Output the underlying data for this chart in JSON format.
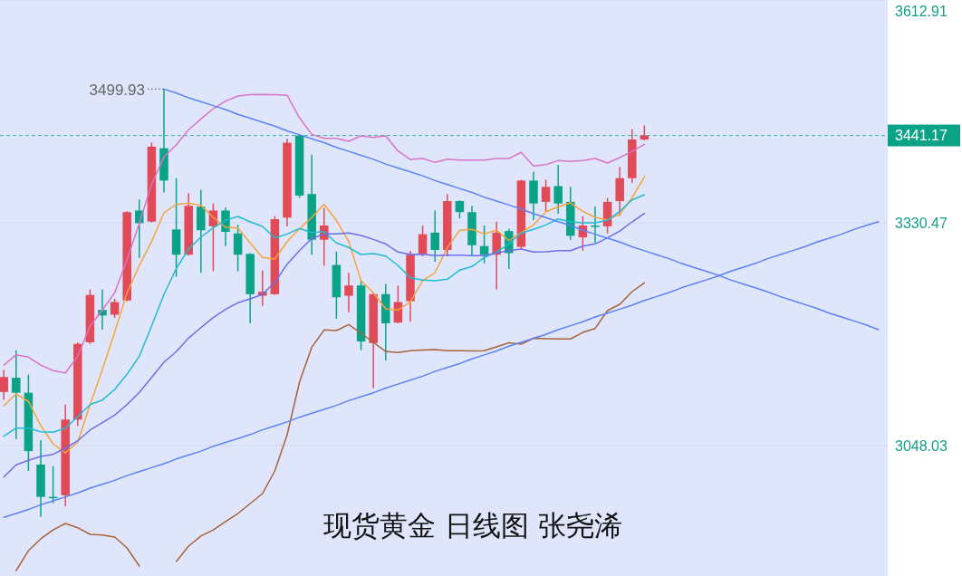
{
  "chart_data": {
    "type": "candlestick",
    "title": "现货黄金 日线图 张尧浠",
    "categories": [
      null,
      null,
      null,
      null,
      null,
      null,
      null,
      null,
      null,
      null,
      null,
      null,
      null,
      null,
      null,
      null,
      null,
      null,
      null,
      null,
      null,
      null,
      null,
      null,
      null,
      null,
      null,
      null,
      null,
      null,
      null,
      null,
      null,
      null,
      null,
      null,
      null,
      null,
      null,
      null,
      null,
      null,
      null,
      null,
      null,
      null,
      null,
      null,
      null,
      null,
      null,
      null,
      null,
      null,
      null,
      null,
      null,
      null,
      null,
      null,
      null,
      null,
      null,
      null,
      null,
      null,
      null,
      null,
      null,
      null,
      null,
      null
    ],
    "ohlc": [
      [
        3116,
        3144,
        3106,
        3135
      ],
      [
        3134,
        3169,
        3056,
        3115
      ],
      [
        3115,
        3138,
        3016,
        3041
      ],
      [
        3024,
        3055,
        2958,
        2983
      ],
      [
        2983,
        3022,
        2975,
        2982
      ],
      [
        2985,
        3100,
        2971,
        3081
      ],
      [
        3081,
        3179,
        3073,
        3177
      ],
      [
        3179,
        3246,
        3177,
        3239
      ],
      [
        3220,
        3246,
        3195,
        3213
      ],
      [
        3214,
        3234,
        3210,
        3230
      ],
      [
        3232,
        3345,
        3231,
        3344
      ],
      [
        3346,
        3360,
        3286,
        3330
      ],
      [
        3332,
        3432,
        3331,
        3427
      ],
      [
        3425,
        3499.93,
        3369,
        3384
      ],
      [
        3322,
        3387,
        3262,
        3290
      ],
      [
        3290,
        3368,
        3289,
        3352
      ],
      [
        3351,
        3372,
        3267,
        3321
      ],
      [
        3326,
        3355,
        3269,
        3346
      ],
      [
        3346,
        3350,
        3301,
        3319
      ],
      [
        3317,
        3328,
        3269,
        3290
      ],
      [
        3291,
        3292,
        3203,
        3240
      ],
      [
        3238,
        3270,
        3225,
        3243
      ],
      [
        3240,
        3339,
        3239,
        3335
      ],
      [
        3337,
        3437,
        3326,
        3432
      ],
      [
        3441,
        3442,
        3362,
        3365
      ],
      [
        3367,
        3417,
        3290,
        3309
      ],
      [
        3309,
        3349,
        3276,
        3327
      ],
      [
        3277,
        3294,
        3209,
        3236
      ],
      [
        3238,
        3267,
        3217,
        3251
      ],
      [
        3251,
        3257,
        3169,
        3180
      ],
      [
        3178,
        3241,
        3121,
        3240
      ],
      [
        3240,
        3253,
        3156,
        3203
      ],
      [
        3204,
        3251,
        3203,
        3230
      ],
      [
        3231,
        3295,
        3205,
        3290
      ],
      [
        3291,
        3327,
        3288,
        3316
      ],
      [
        3318,
        3346,
        3281,
        3296
      ],
      [
        3296,
        3367,
        3288,
        3358
      ],
      [
        3358,
        3359,
        3336,
        3344
      ],
      [
        3344,
        3352,
        3289,
        3302
      ],
      [
        3301,
        3327,
        3279,
        3290
      ],
      [
        3290,
        3332,
        3246,
        3318
      ],
      [
        3320,
        3323,
        3272,
        3292
      ],
      [
        3300,
        3385,
        3297,
        3384
      ],
      [
        3384,
        3395,
        3334,
        3355
      ],
      [
        3357,
        3385,
        3345,
        3376
      ],
      [
        3377,
        3404,
        3342,
        3355
      ],
      [
        3357,
        3376,
        3309,
        3314
      ],
      [
        3312,
        3339,
        3295,
        3327
      ],
      [
        3327,
        3351,
        3305,
        3326
      ],
      [
        3326,
        3362,
        3317,
        3357
      ],
      [
        3358,
        3401,
        3339,
        3387
      ],
      [
        3387,
        3449,
        3381,
        3436
      ],
      [
        3436,
        3454,
        3435,
        3441.17
      ],
      null,
      null,
      null,
      null,
      null,
      null,
      null,
      null,
      null,
      null,
      null,
      null,
      null,
      null,
      null,
      null,
      null,
      null,
      null
    ],
    "colors": [
      "#e04b57",
      "#0ba387",
      "#0ba387",
      "#0ba387",
      "#0ba387",
      "#e04b57",
      "#e04b57",
      "#e04b57",
      "#0ba387",
      "#e04b57",
      "#e04b57",
      "#0ba387",
      "#e04b57",
      "#0ba387",
      "#0ba387",
      "#e04b57",
      "#0ba387",
      "#e04b57",
      "#0ba387",
      "#0ba387",
      "#0ba387",
      "#e04b57",
      "#e04b57",
      "#e04b57",
      "#0ba387",
      "#0ba387",
      "#e04b57",
      "#0ba387",
      "#e04b57",
      "#0ba387",
      "#e04b57",
      "#0ba387",
      "#e04b57",
      "#e04b57",
      "#e04b57",
      "#0ba387",
      "#e04b57",
      "#0ba387",
      "#0ba387",
      "#0ba387",
      "#e04b57",
      "#0ba387",
      "#e04b57",
      "#0ba387",
      "#e04b57",
      "#0ba387",
      "#0ba387",
      "#e04b57",
      "#0ba387",
      "#e04b57",
      "#e04b57",
      "#e04b57",
      "#e04b57",
      null,
      null,
      null,
      null,
      null,
      null,
      null,
      null,
      null,
      null,
      null,
      null,
      null,
      null,
      null,
      null,
      null,
      null,
      null
    ],
    "series": [
      {
        "type": "line",
        "color": "#d873c8",
        "values": [
          3149.9,
          3163.2,
          3160.2,
          3150.0,
          3143.0,
          3140.2,
          3161.3,
          3199.6,
          3220.0,
          3241.7,
          3283.7,
          3329.7,
          3379.5,
          3413.9,
          3429.2,
          3448.4,
          3462.0,
          3475.1,
          3484.7,
          3491.2,
          3493.0,
          3493.2,
          3493.0,
          3492.0,
          3463.6,
          3442.6,
          3437.6,
          3437.6,
          3433.8,
          3440.7,
          3438.7,
          3440.7,
          3421.5,
          3410.8,
          3412.0,
          3407.0,
          3411.2,
          3410.0,
          3410.0,
          3410.0,
          3412.0,
          3412.0,
          3419.7,
          3402.5,
          3404.3,
          3409.3,
          3408.2,
          3409.3,
          3412.0,
          3406.2,
          3413.1,
          3421.0,
          3430.0,
          null,
          null,
          null,
          null,
          null,
          null,
          null,
          null,
          null,
          null,
          null,
          null,
          null,
          null,
          null,
          null,
          null,
          null,
          null
        ]
      },
      {
        "type": "line",
        "color": "#f7a23b",
        "values": [
          3098.2,
          3113.5,
          3104.0,
          3073.3,
          3050.3,
          3038.8,
          3052.3,
          3100.0,
          3144.1,
          3191.9,
          3241.7,
          3276.2,
          3306.7,
          3343.1,
          3353.8,
          3355.4,
          3352.6,
          3337.4,
          3324.7,
          3323.9,
          3304.9,
          3286.5,
          3284.5,
          3306.7,
          3322.8,
          3337.4,
          3353.8,
          3333.6,
          3306.7,
          3257.0,
          3241.7,
          3221.4,
          3219.9,
          3230.2,
          3257.0,
          3267.3,
          3299.1,
          3320.9,
          3322.1,
          3316.3,
          3321.3,
          3307.8,
          3318.2,
          3327.8,
          3344.2,
          3350.8,
          3355.7,
          3345.0,
          3337.4,
          3334.3,
          3341.2,
          3362.3,
          3389.0,
          null,
          null,
          null,
          null,
          null,
          null,
          null,
          null,
          null,
          null,
          null,
          null,
          null,
          null,
          null,
          null,
          null,
          null,
          null
        ]
      },
      {
        "type": "line",
        "color": "#1fbcd2",
        "values": [
          3059.9,
          3070.2,
          3070.2,
          3065.6,
          3064.9,
          3070.2,
          3084.8,
          3100.0,
          3105.8,
          3119.2,
          3138.4,
          3161.3,
          3199.6,
          3239.8,
          3272.3,
          3297.2,
          3312.4,
          3323.9,
          3333.6,
          3338.5,
          3331.6,
          3325.9,
          3311.3,
          3316.3,
          3323.2,
          3318.2,
          3319.3,
          3304.9,
          3299.1,
          3290.3,
          3291.4,
          3288.3,
          3276.2,
          3260.8,
          3257.8,
          3257.0,
          3258.9,
          3270.4,
          3275.0,
          3286.5,
          3293.4,
          3303.7,
          3317.5,
          3322.1,
          3327.8,
          3335.4,
          3331.6,
          3330.5,
          3330.5,
          3333.6,
          3345.0,
          3359.5,
          3366.1,
          null,
          null,
          null,
          null,
          null,
          null,
          null,
          null,
          null,
          null,
          null,
          null,
          null,
          null,
          null,
          null,
          null,
          null,
          null
        ]
      },
      {
        "type": "line",
        "color": "#6b6ee8",
        "values": [
          3008.2,
          3023.6,
          3029.3,
          3034.3,
          3036.9,
          3044.6,
          3054.1,
          3067.6,
          3077.1,
          3086.7,
          3100.0,
          3115.4,
          3134.5,
          3153.7,
          3167.1,
          3184.3,
          3197.6,
          3210.3,
          3220.6,
          3229.1,
          3234.0,
          3239.8,
          3255.0,
          3278.0,
          3295.2,
          3310.6,
          3316.3,
          3316.3,
          3317.5,
          3314.4,
          3309.4,
          3303.7,
          3293.4,
          3290.3,
          3290.6,
          3288.8,
          3289.5,
          3289.5,
          3288.8,
          3288.8,
          3292.2,
          3295.2,
          3297.2,
          3293.4,
          3293.7,
          3295.2,
          3295.2,
          3300.9,
          3303.7,
          3311.3,
          3320.1,
          3331.6,
          3342.3,
          null,
          null,
          null,
          null,
          null,
          null,
          null,
          null,
          null,
          null,
          null,
          null,
          null,
          null,
          null,
          null,
          null,
          null,
          null
        ]
      },
      {
        "type": "line",
        "color": "#a8623a",
        "values": [
          null,
          2889.6,
          2914.8,
          2929.8,
          2941.2,
          2949.3,
          2943.9,
          2935.5,
          2934.7,
          2932.1,
          2918.3,
          2895.3,
          null,
          null,
          2901.0,
          2920.6,
          2933.3,
          2941.2,
          2951.6,
          2961.9,
          2974.5,
          2987.2,
          3015.9,
          3061.8,
          3128.4,
          3172.8,
          3194.6,
          3193.8,
          3201.5,
          3190.4,
          3178.9,
          3167.4,
          3165.9,
          3168.2,
          3169.2,
          3169.7,
          3168.2,
          3168.2,
          3168.0,
          3168.2,
          3173.2,
          3178.3,
          3176.6,
          3184.1,
          3183.5,
          3183.2,
          3183.2,
          3191.5,
          3196.5,
          3219.1,
          3227.1,
          3243.2,
          3254.3,
          null,
          null,
          null,
          null,
          null,
          null,
          null,
          null,
          null,
          null,
          null,
          null,
          null,
          null,
          null,
          null,
          null,
          null,
          null
        ]
      },
      {
        "type": "line",
        "color": "#5b82f5",
        "values": [
          null,
          null,
          null,
          null,
          null,
          null,
          null,
          null,
          null,
          null,
          null,
          null,
          null,
          3499.93,
          3495,
          3489,
          3484,
          3479,
          3474,
          3468,
          3463,
          3458,
          3453,
          3447,
          3442,
          3437,
          3432,
          3426,
          3421,
          3416,
          3411,
          3405,
          3400,
          3395,
          3390,
          3384,
          3379,
          3374,
          3369,
          3363,
          3358,
          3353,
          3348,
          3342,
          3337,
          3332,
          3327,
          3321,
          3316,
          3311,
          3306,
          3300,
          3295,
          3290,
          3285,
          3279,
          3274,
          3269,
          3264,
          3258,
          3253,
          3248,
          3243,
          3237,
          3232,
          3227,
          3222,
          3216,
          3211,
          3206,
          3201,
          3195
        ]
      },
      {
        "type": "line",
        "color": "#5b82f5",
        "values": [
          2957,
          2962,
          2967,
          2973,
          2978,
          2983,
          2988,
          2994,
          2999,
          3004,
          3010,
          3015,
          3020,
          3025,
          3031,
          3036,
          3041,
          3047,
          3052,
          3057,
          3062,
          3068,
          3073,
          3078,
          3084,
          3089,
          3094,
          3099,
          3105,
          3110,
          3115,
          3121,
          3126,
          3131,
          3136,
          3142,
          3147,
          3152,
          3158,
          3163,
          3168,
          3174,
          3179,
          3184,
          3189,
          3195,
          3200,
          3205,
          3211,
          3216,
          3221,
          3226,
          3232,
          3237,
          3242,
          3248,
          3253,
          3258,
          3263,
          3269,
          3274,
          3279,
          3285,
          3290,
          3295,
          3300,
          3306,
          3311,
          3316,
          3322,
          3327,
          3332
        ]
      }
    ],
    "ylim": [
      2882.7,
      3612.91
    ],
    "yticks": [
      {
        "value": 3612.91,
        "label": "3612.91"
      },
      {
        "value": 3330.47,
        "label": "3330.47"
      },
      {
        "value": 3048.03,
        "label": "3048.03"
      }
    ],
    "tick_labels": "y",
    "grid": "y",
    "ref_lines": [
      {
        "axis": "y",
        "value": 3441.17,
        "label": "3441.17",
        "color": "#0ba387",
        "line_style": "dashed"
      }
    ],
    "annotations": [
      "3499.93"
    ]
  }
}
